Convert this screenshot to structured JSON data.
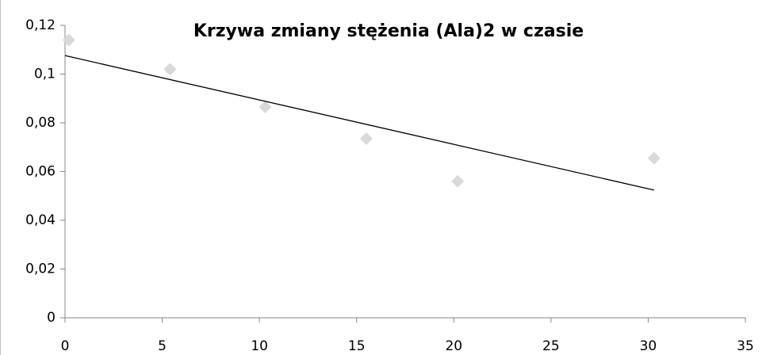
{
  "chart_data": {
    "type": "scatter",
    "title": "Krzywa zmiany stężenia (Ala)2 w czasie",
    "x": [
      0.2,
      5.4,
      10.3,
      15.5,
      20.2,
      30.3
    ],
    "values": [
      0.114,
      0.102,
      0.0865,
      0.0735,
      0.056,
      0.0655
    ],
    "color": "#d9d9d9",
    "trendline": {
      "x": [
        0,
        30.3
      ],
      "values": [
        0.1076,
        0.0524
      ],
      "color": "#000000"
    },
    "xlim": [
      0,
      35
    ],
    "xticks": [
      0,
      5,
      10,
      15,
      20,
      25,
      30,
      35
    ],
    "ylim": [
      0,
      0.12
    ],
    "yticks": [
      0,
      {
        "value": 0.02,
        "label": "0,02"
      },
      {
        "value": 0.04,
        "label": "0,04"
      },
      {
        "value": 0.06,
        "label": "0,06"
      },
      {
        "value": 0.08,
        "label": "0,08"
      },
      {
        "value": 0.1,
        "label": "0,1"
      },
      {
        "value": 0.12,
        "label": "0,12"
      }
    ]
  }
}
